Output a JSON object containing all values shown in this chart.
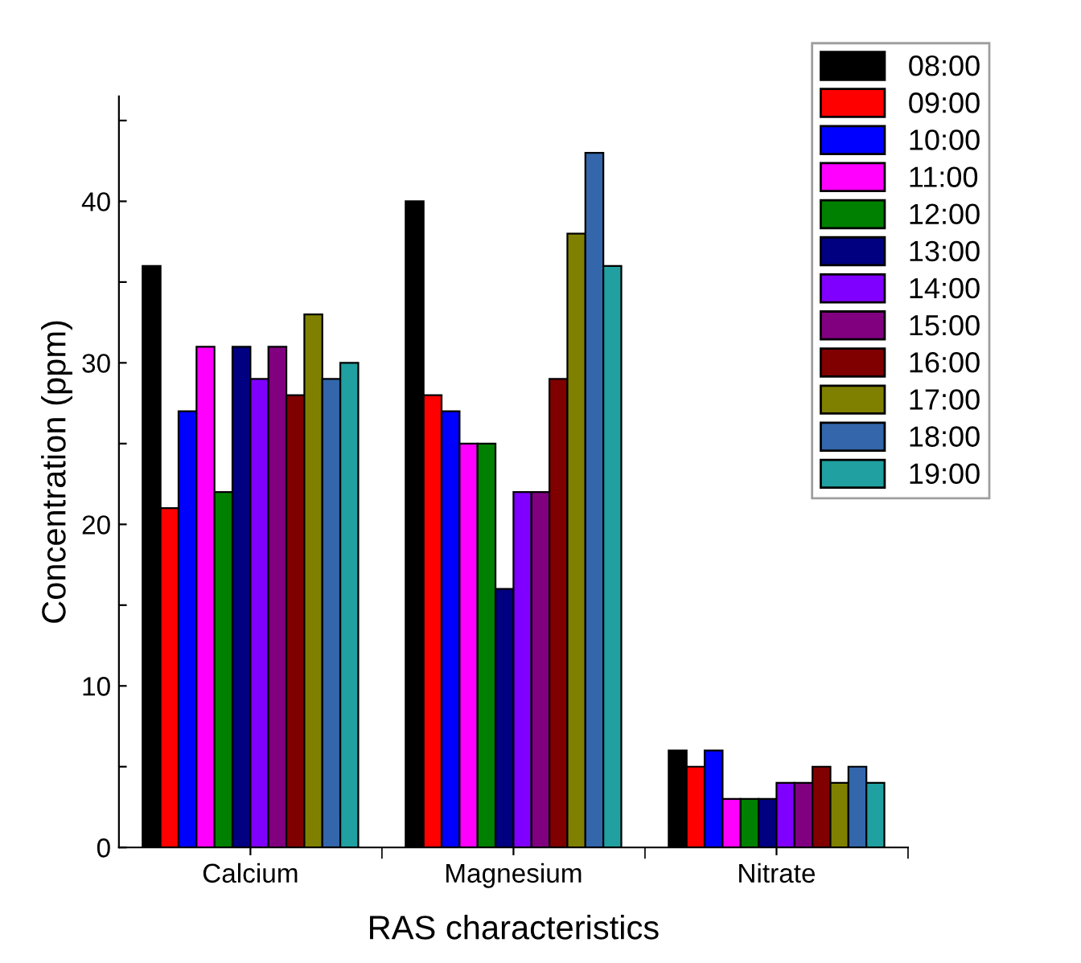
{
  "chart_data": {
    "type": "bar",
    "xlabel": "RAS characteristics",
    "ylabel": "Concentration (ppm)",
    "categories": [
      "Calcium",
      "Magnesium",
      "Nitrate"
    ],
    "series": [
      {
        "name": "08:00",
        "color": "#000000",
        "values": [
          36,
          40,
          6
        ]
      },
      {
        "name": "09:00",
        "color": "#ff0000",
        "values": [
          21,
          28,
          5
        ]
      },
      {
        "name": "10:00",
        "color": "#0000ff",
        "values": [
          27,
          27,
          6
        ]
      },
      {
        "name": "11:00",
        "color": "#ff00ff",
        "values": [
          31,
          25,
          3
        ]
      },
      {
        "name": "12:00",
        "color": "#008000",
        "values": [
          22,
          25,
          3
        ]
      },
      {
        "name": "13:00",
        "color": "#000080",
        "values": [
          31,
          16,
          3
        ]
      },
      {
        "name": "14:00",
        "color": "#8000ff",
        "values": [
          29,
          22,
          4
        ]
      },
      {
        "name": "15:00",
        "color": "#800080",
        "values": [
          31,
          22,
          4
        ]
      },
      {
        "name": "16:00",
        "color": "#800000",
        "values": [
          28,
          29,
          5
        ]
      },
      {
        "name": "17:00",
        "color": "#808000",
        "values": [
          33,
          38,
          4
        ]
      },
      {
        "name": "18:00",
        "color": "#3366aa",
        "values": [
          29,
          43,
          5
        ]
      },
      {
        "name": "19:00",
        "color": "#20a0a0",
        "values": [
          30,
          36,
          4
        ]
      }
    ],
    "ylim": [
      0,
      46.5
    ],
    "yticks": [
      0,
      {
        "value": 5,
        "label": null
      },
      10,
      {
        "value": 15,
        "label": null
      },
      20,
      {
        "value": 25,
        "label": null
      },
      30,
      {
        "value": 35,
        "label": null
      },
      40,
      {
        "value": 45,
        "label": null
      }
    ],
    "grid": false,
    "legend": "top right"
  }
}
